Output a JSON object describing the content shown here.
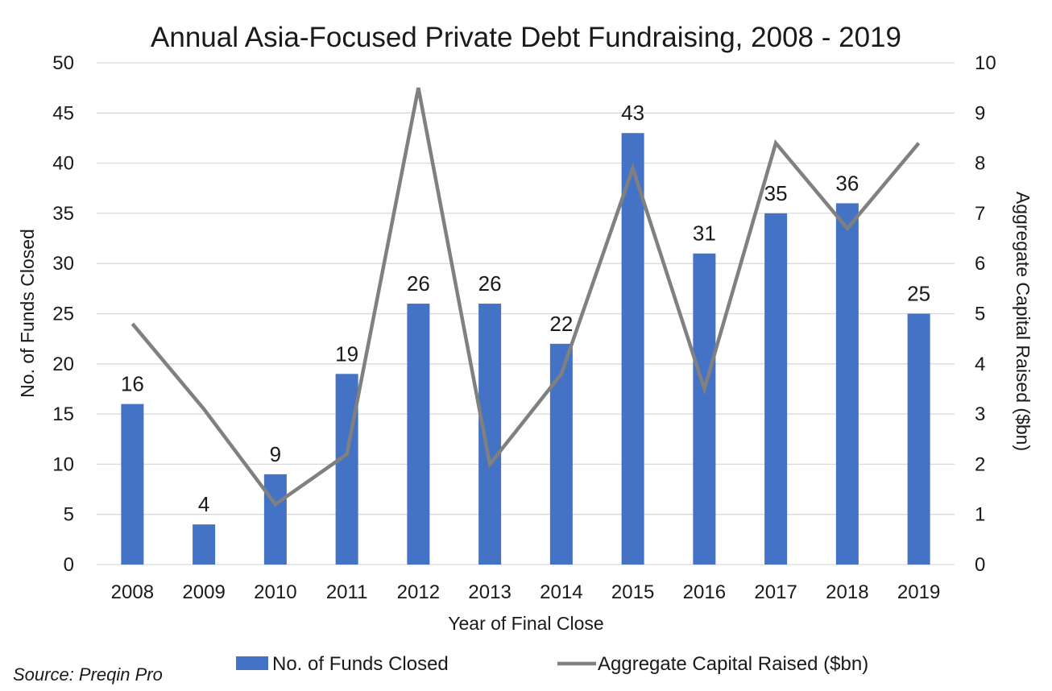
{
  "chart_data": {
    "type": "bar",
    "title": "Annual Asia-Focused Private Debt Fundraising, 2008 - 2019",
    "xlabel": "Year of Final Close",
    "ylabel": "No. of Funds Closed",
    "y2label": "Aggregate Capital Raised ($bn)",
    "categories": [
      "2008",
      "2009",
      "2010",
      "2011",
      "2012",
      "2013",
      "2014",
      "2015",
      "2016",
      "2017",
      "2018",
      "2019"
    ],
    "ylim": [
      0,
      50
    ],
    "y2lim": [
      0,
      10
    ],
    "yticks": [
      "0",
      "5",
      "10",
      "15",
      "20",
      "25",
      "30",
      "35",
      "40",
      "45",
      "50"
    ],
    "y2ticks": [
      "0",
      "1",
      "2",
      "3",
      "4",
      "5",
      "6",
      "7",
      "8",
      "9",
      "10"
    ],
    "grid": true,
    "legend_position": "bottom",
    "series": [
      {
        "name": "No. of Funds Closed",
        "type": "bar",
        "axis": "left",
        "color": "#4472C4",
        "values": [
          16,
          4,
          9,
          19,
          26,
          26,
          22,
          43,
          31,
          35,
          36,
          25
        ],
        "labels": [
          "16",
          "4",
          "9",
          "19",
          "26",
          "26",
          "22",
          "43",
          "31",
          "35",
          "36",
          "25"
        ]
      },
      {
        "name": "Aggregate Capital Raised ($bn)",
        "type": "line",
        "axis": "right",
        "color": "#808080",
        "values": [
          4.8,
          3.1,
          1.2,
          2.2,
          9.5,
          2.0,
          3.8,
          7.9,
          3.5,
          8.4,
          6.7,
          8.4
        ]
      }
    ]
  },
  "source": "Source: Preqin Pro"
}
